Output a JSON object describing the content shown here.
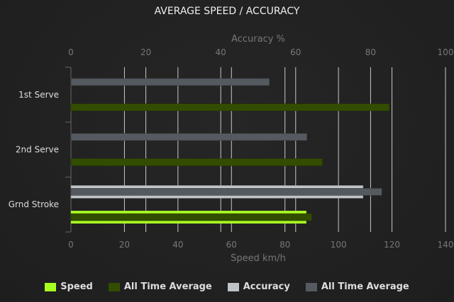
{
  "chart_data": {
    "type": "bar",
    "orientation": "horizontal",
    "title": "AVERAGE SPEED / ACCURACY",
    "categories": [
      "1st Serve",
      "2nd Serve",
      "Grnd Stroke"
    ],
    "x_axis_bottom": {
      "label": "Speed km/h",
      "range": [
        0,
        140
      ],
      "ticks": [
        0,
        20,
        40,
        60,
        80,
        100,
        120,
        140
      ]
    },
    "x_axis_top": {
      "label": "Accuracy %",
      "range": [
        0,
        100
      ],
      "ticks": [
        0,
        20,
        40,
        60,
        80,
        100
      ]
    },
    "grid": true,
    "legend_placement": "bottom",
    "series": [
      {
        "name": "Speed",
        "axis": "bottom",
        "color": "#a8ff22",
        "values": [
          null,
          null,
          88
        ]
      },
      {
        "name": "All Time Average",
        "axis": "bottom",
        "color": "#334d00",
        "values": [
          119,
          94,
          90
        ]
      },
      {
        "name": "Accuracy",
        "axis": "top",
        "color": "#c0c4c6",
        "values": [
          null,
          null,
          78
        ]
      },
      {
        "name": "All Time Average",
        "axis": "top",
        "color": "#555a61",
        "values": [
          53,
          63,
          83
        ]
      }
    ]
  }
}
